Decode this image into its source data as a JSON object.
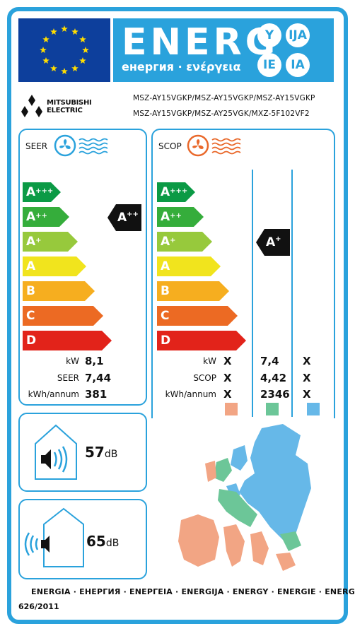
{
  "header": {
    "energy_word": "ENERG",
    "energy_subtitle": "енергия · ενέργεια",
    "suffixes": [
      "Y",
      "IJA",
      "IE",
      "IA"
    ]
  },
  "manufacturer": {
    "logo_line1": "MITSUBISHI",
    "logo_line2": "ELECTRIC"
  },
  "models": {
    "line1": "MSZ-AY15VGKP/MSZ-AY15VGKP/MSZ-AY15VGKP",
    "line2": "MSZ-AY15VGKP/MSZ-AY25VGK/MXZ-5F102VF2"
  },
  "scale_classes": [
    "A+++",
    "A++",
    "A+",
    "A",
    "B",
    "C",
    "D"
  ],
  "scale_colors": [
    "#0b9a45",
    "#35ad3b",
    "#97c93c",
    "#f1e41d",
    "#f6ae1f",
    "#ec6a23",
    "#e2231a"
  ],
  "seer": {
    "title": "SEER",
    "rating": "A++",
    "rows": [
      {
        "label": "kW",
        "value": "8,1"
      },
      {
        "label": "SEER",
        "value": "7,44"
      },
      {
        "label": "kWh/annum",
        "value": "381"
      }
    ]
  },
  "scop": {
    "title": "SCOP",
    "rating": "A+",
    "rows": [
      {
        "label": "kW",
        "warmer": "X",
        "average": "7,4",
        "colder": "X"
      },
      {
        "label": "SCOP",
        "warmer": "X",
        "average": "4,42",
        "colder": "X"
      },
      {
        "label": "kWh/annum",
        "warmer": "X",
        "average": "2346",
        "colder": "X"
      }
    ],
    "zone_colors": {
      "warmer": "#f2a584",
      "average": "#6cc698",
      "colder": "#66b8e8"
    }
  },
  "noise": {
    "indoor": {
      "value": "57",
      "unit": "dB"
    },
    "outdoor": {
      "value": "65",
      "unit": "dB"
    }
  },
  "footer": {
    "languages": "ENERGIA · ЕНЕРГИЯ · ΕΝΕΡΓΕΙΑ · ENERGIJA · ENERGY · ENERGIE · ENERGI",
    "regulation": "626/2011"
  }
}
